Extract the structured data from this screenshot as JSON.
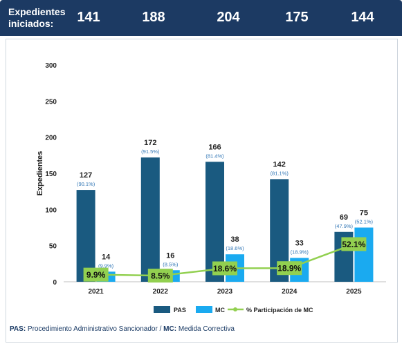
{
  "header": {
    "label": "Expedientes iniciados:",
    "totals": [
      "141",
      "188",
      "204",
      "175",
      "144"
    ]
  },
  "colors": {
    "header_bg": "#1c3a63",
    "pas": "#1a5a80",
    "mc": "#1aaaf0",
    "line": "#92d050",
    "pct_label": "#2f75b5"
  },
  "chart_data": {
    "type": "bar",
    "categories": [
      "2021",
      "2022",
      "2023",
      "2024",
      "2025"
    ],
    "ylabel": "Expedientes",
    "ylim": [
      0,
      300
    ],
    "yticks": [
      "0",
      "50",
      "100",
      "150",
      "200",
      "250",
      "300"
    ],
    "series": [
      {
        "name": "PAS",
        "values": [
          127,
          172,
          166,
          142,
          69
        ],
        "share_labels": [
          "(90.1%)",
          "(91.5%)",
          "(81.4%)",
          "(81.1%)",
          "(47.9%)"
        ]
      },
      {
        "name": "MC",
        "values": [
          14,
          16,
          38,
          33,
          75
        ],
        "share_labels": [
          "(9.9%)",
          "(8.5%)",
          "(18.6%)",
          "(18.9%)",
          "(52.1%)"
        ]
      }
    ],
    "line": {
      "name": "% Participación de MC",
      "values": [
        9.9,
        8.5,
        18.6,
        18.9,
        52.1
      ],
      "labels": [
        "9.9%",
        "8.5%",
        "18.6%",
        "18.9%",
        "52.1%"
      ]
    },
    "legend_position": "bottom",
    "grid": false
  },
  "footnote": {
    "pas_abbr": "PAS:",
    "pas_text": " Procedimiento Administrativo Sancionador / ",
    "mc_abbr": "MC:",
    "mc_text": " Medida Correctiva"
  }
}
